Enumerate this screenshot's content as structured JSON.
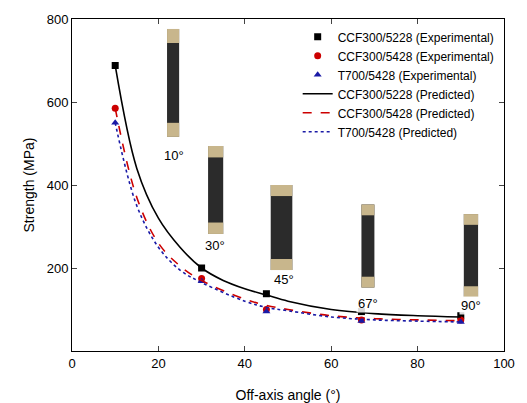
{
  "chart_data": {
    "type": "scatter",
    "x_label": "Off-axis angle (°)",
    "y_label": "Strength (MPa)",
    "xlim": [
      0,
      100
    ],
    "xticks": [
      0,
      20,
      40,
      60,
      80,
      100
    ],
    "ylim": [
      0,
      800
    ],
    "yticks": [
      200,
      400,
      600,
      800
    ],
    "grid": false,
    "legend": "top-right",
    "annotations": [
      "10°",
      "30°",
      "45°",
      "67°",
      "90°"
    ],
    "series": [
      {
        "name": "CCF300/5228 (Experimental)",
        "type": "scatter",
        "marker": "square",
        "color": "#000000",
        "x": [
          10,
          30,
          45,
          67,
          90
        ],
        "values": [
          688,
          200,
          138,
          95,
          85
        ]
      },
      {
        "name": "CCF300/5428 (Experimental)",
        "type": "scatter",
        "marker": "circle",
        "color": "#cc0000",
        "x": [
          10,
          30,
          45,
          67,
          90
        ],
        "values": [
          585,
          175,
          100,
          75,
          75
        ]
      },
      {
        "name": "T700/5428 (Experimental)",
        "type": "scatter",
        "marker": "triangle-up",
        "color": "#1a1aa6",
        "x": [
          10,
          30,
          45,
          67,
          90
        ],
        "values": [
          550,
          168,
          95,
          72,
          70
        ]
      },
      {
        "name": "CCF300/5228 (Predicted)",
        "type": "line",
        "line_style": "solid",
        "color": "#000000",
        "x": [
          10,
          15,
          20,
          25,
          30,
          35,
          40,
          45,
          50,
          60,
          70,
          80,
          90
        ],
        "values": [
          688,
          440,
          320,
          250,
          200,
          170,
          150,
          135,
          120,
          100,
          90,
          85,
          82
        ]
      },
      {
        "name": "CCF300/5428 (Predicted)",
        "type": "line",
        "line_style": "dash",
        "color": "#cc0000",
        "x": [
          10,
          15,
          20,
          25,
          30,
          40,
          45,
          50,
          60,
          70,
          80,
          90
        ],
        "values": [
          585,
          370,
          260,
          205,
          170,
          125,
          110,
          100,
          85,
          78,
          75,
          73
        ]
      },
      {
        "name": "T700/5428 (Predicted)",
        "type": "line",
        "line_style": "dot",
        "color": "#1a1aa6",
        "x": [
          10,
          15,
          20,
          25,
          30,
          40,
          45,
          50,
          60,
          70,
          80,
          90
        ],
        "values": [
          550,
          350,
          250,
          195,
          165,
          120,
          105,
          97,
          82,
          75,
          72,
          70
        ]
      }
    ]
  }
}
